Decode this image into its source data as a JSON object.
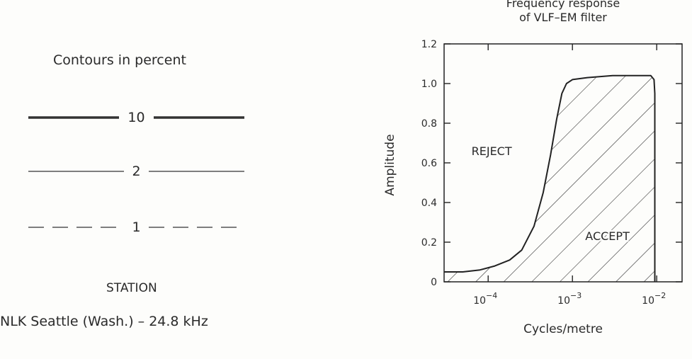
{
  "legend": {
    "title": "Contours in percent",
    "items": [
      {
        "label": "10",
        "style": "thick-solid"
      },
      {
        "label": "2",
        "style": "thin-solid"
      },
      {
        "label": "1",
        "style": "dashed"
      }
    ]
  },
  "station": {
    "title": "STATION",
    "name": "NLK Seattle (Wash.) – 24.8 kHz"
  },
  "chart_data": {
    "type": "area",
    "title": "Frequency response of VLF–EM filter",
    "title_lines": [
      "Frequency response",
      "of VLF–EM filter"
    ],
    "xlabel": "Cycles/metre",
    "ylabel": "Amplitude",
    "xscale": "log",
    "xlim": [
      3e-05,
      0.02
    ],
    "ylim": [
      0,
      1.2
    ],
    "xticks": [
      {
        "value": 0.0001,
        "base": "10",
        "exp": "−4"
      },
      {
        "value": 0.001,
        "base": "10",
        "exp": "−3"
      },
      {
        "value": 0.01,
        "base": "10",
        "exp": "−2"
      }
    ],
    "yticks": [
      {
        "value": 0,
        "label": "0"
      },
      {
        "value": 0.2,
        "label": "0.2"
      },
      {
        "value": 0.4,
        "label": "0.4"
      },
      {
        "value": 0.6,
        "label": "0.6"
      },
      {
        "value": 0.8,
        "label": "0.8"
      },
      {
        "value": 1.0,
        "label": "1.0"
      },
      {
        "value": 1.2,
        "label": "1.2"
      }
    ],
    "series": [
      {
        "x": [
          3e-05,
          5e-05,
          8e-05,
          0.00012,
          0.00018,
          0.00025,
          0.00035,
          0.00045,
          0.00055,
          0.00065,
          0.00075,
          0.00085,
          0.001,
          0.0015,
          0.003,
          0.006,
          0.0085,
          0.0093,
          0.0095,
          0.0095
        ],
        "y": [
          0.05,
          0.05,
          0.06,
          0.08,
          0.11,
          0.16,
          0.28,
          0.45,
          0.64,
          0.82,
          0.95,
          1.0,
          1.02,
          1.03,
          1.04,
          1.04,
          1.04,
          1.02,
          0.95,
          0.0
        ]
      }
    ],
    "annotations": [
      {
        "text": "REJECT",
        "x": 0.00011,
        "y": 0.64
      },
      {
        "text": "ACCEPT",
        "x": 0.0026,
        "y": 0.21
      }
    ]
  }
}
